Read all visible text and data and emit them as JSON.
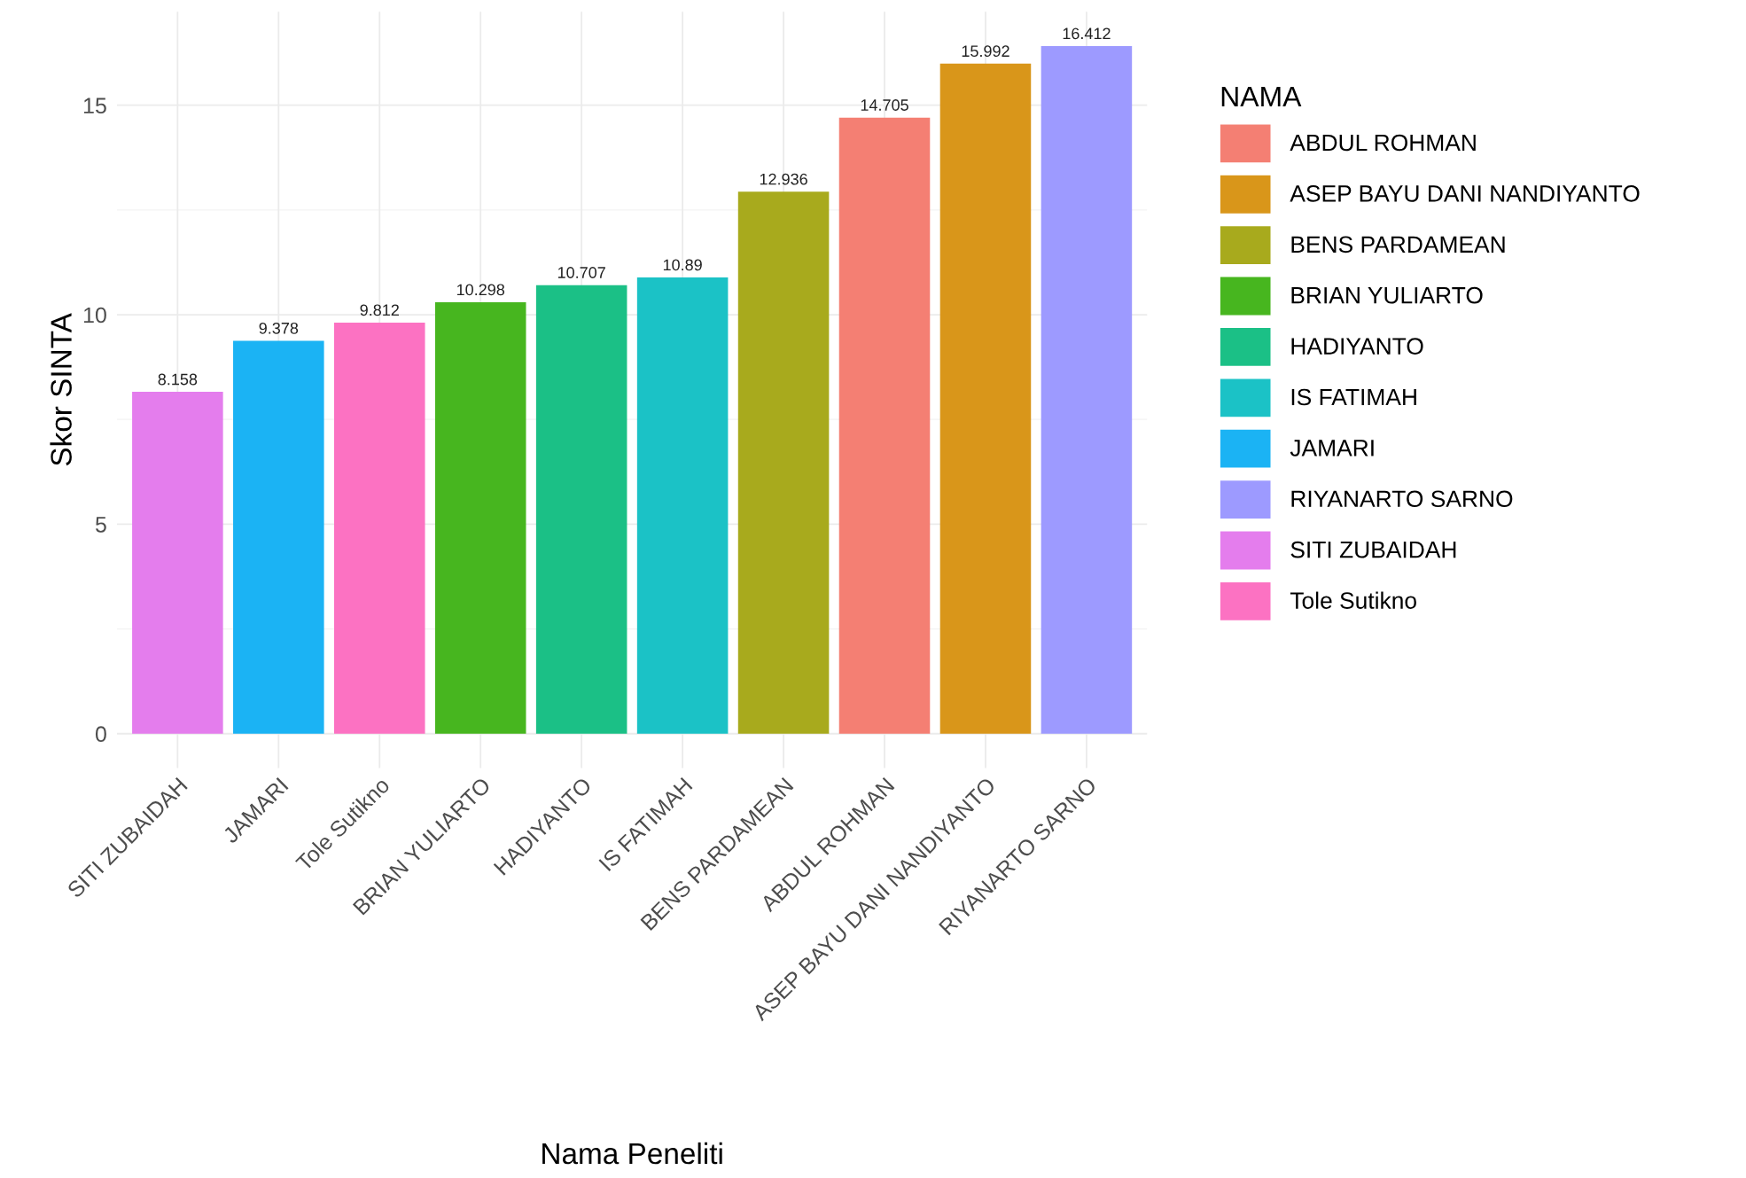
{
  "chart_data": {
    "type": "bar",
    "xlabel": "Nama Peneliti",
    "ylabel": "Skor SINTA",
    "legend_title": "NAMA",
    "categories": [
      "SITI ZUBAIDAH",
      "JAMARI",
      "Tole Sutikno",
      "BRIAN YULIARTO",
      "HADIYANTO",
      "IS FATIMAH",
      "BENS PARDAMEAN",
      "ABDUL ROHMAN",
      "ASEP BAYU DANI NANDIYANTO",
      "RIYANARTO SARNO"
    ],
    "series": [
      {
        "name": "ABDUL ROHMAN",
        "color": "#f47f73",
        "values": [
          null,
          null,
          null,
          null,
          null,
          null,
          null,
          14.705,
          null,
          null
        ]
      },
      {
        "name": "ASEP BAYU DANI NANDIYANTO",
        "color": "#d9961a",
        "values": [
          null,
          null,
          null,
          null,
          null,
          null,
          null,
          null,
          15.992,
          null
        ]
      },
      {
        "name": "BENS PARDAMEAN",
        "color": "#a8aa1d",
        "values": [
          null,
          null,
          null,
          null,
          null,
          null,
          12.936,
          null,
          null,
          null
        ]
      },
      {
        "name": "BRIAN YULIARTO",
        "color": "#47b61f",
        "values": [
          null,
          null,
          null,
          10.298,
          null,
          null,
          null,
          null,
          null,
          null
        ]
      },
      {
        "name": "HADIYANTO",
        "color": "#1bc086",
        "values": [
          null,
          null,
          null,
          null,
          10.707,
          null,
          null,
          null,
          null,
          null
        ]
      },
      {
        "name": "IS FATIMAH",
        "color": "#1bc2c6",
        "values": [
          null,
          null,
          null,
          null,
          null,
          10.89,
          null,
          null,
          null,
          null
        ]
      },
      {
        "name": "JAMARI",
        "color": "#1bb3f4",
        "values": [
          null,
          9.378,
          null,
          null,
          null,
          null,
          null,
          null,
          null,
          null
        ]
      },
      {
        "name": "RIYANARTO SARNO",
        "color": "#9d9aff",
        "values": [
          null,
          null,
          null,
          null,
          null,
          null,
          null,
          null,
          null,
          16.412
        ]
      },
      {
        "name": "SITI ZUBAIDAH",
        "color": "#e47ded",
        "values": [
          8.158,
          null,
          null,
          null,
          null,
          null,
          null,
          null,
          null,
          null
        ]
      },
      {
        "name": "Tole Sutikno",
        "color": "#fc72c2",
        "values": [
          null,
          null,
          9.812,
          null,
          null,
          null,
          null,
          null,
          null,
          null
        ]
      }
    ],
    "ylim": [
      -0.82,
      17.23
    ],
    "yticks": [
      0,
      5,
      10,
      15
    ],
    "grid": true,
    "legend": "right",
    "data_labels": true
  }
}
